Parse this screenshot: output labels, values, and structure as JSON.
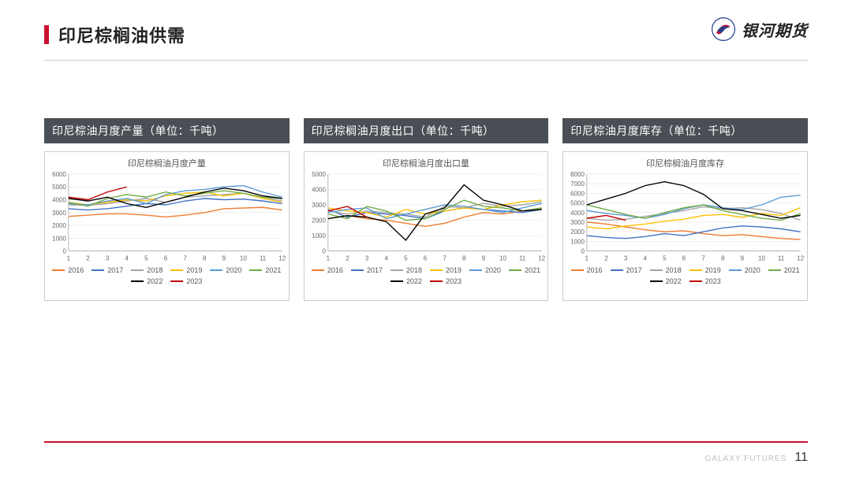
{
  "page": {
    "title": "印尼棕榈油供需",
    "brand_name": "银河期货",
    "footer_brand": "GALAXY FUTURES",
    "page_number": "11",
    "accent_color": "#c8102e",
    "header_bg": "#4a4f55"
  },
  "series_colors": {
    "2016": "#ed7d31",
    "2017": "#4472c4",
    "2018": "#a5a5a5",
    "2019": "#ffc000",
    "2020": "#5b9bd5",
    "2021": "#70ad47",
    "2022": "#000000",
    "2023": "#c00000"
  },
  "charts": [
    {
      "header": "印尼棕油月度产量（单位：千吨）",
      "title": "印尼棕榈油月度产量",
      "type": "line",
      "x_categories": [
        "1",
        "2",
        "3",
        "4",
        "5",
        "6",
        "7",
        "8",
        "9",
        "10",
        "11",
        "12"
      ],
      "ylim": [
        0,
        6000
      ],
      "ytick_step": 1000,
      "series": [
        {
          "name": "2016",
          "values": [
            2700,
            2800,
            2900,
            2900,
            2800,
            2650,
            2800,
            3000,
            3300,
            3350,
            3400,
            3200
          ]
        },
        {
          "name": "2017",
          "values": [
            3300,
            3200,
            3300,
            3500,
            3700,
            3600,
            3900,
            4100,
            4000,
            4050,
            3900,
            3700
          ]
        },
        {
          "name": "2018",
          "values": [
            3600,
            3550,
            3700,
            3900,
            4100,
            3800,
            4200,
            4300,
            4400,
            4500,
            4200,
            3900
          ]
        },
        {
          "name": "2019",
          "values": [
            3800,
            3600,
            3800,
            4000,
            3900,
            4300,
            4500,
            4600,
            4300,
            4500,
            4100,
            3800
          ]
        },
        {
          "name": "2020",
          "values": [
            3700,
            3600,
            3900,
            4100,
            3700,
            4400,
            4700,
            4800,
            5000,
            5100,
            4600,
            4200
          ]
        },
        {
          "name": "2021",
          "values": [
            3800,
            3500,
            4100,
            4400,
            4200,
            4600,
            4300,
            4500,
            4700,
            4500,
            4200,
            4100
          ]
        },
        {
          "name": "2022",
          "values": [
            4100,
            3900,
            4200,
            3700,
            3400,
            3800,
            4200,
            4600,
            4900,
            4700,
            4300,
            4100
          ]
        },
        {
          "name": "2023",
          "values": [
            4200,
            4000,
            4600,
            5000
          ]
        }
      ]
    },
    {
      "header": "印尼棕榈油月度出口（单位：千吨）",
      "title": "印尼棕榈油月度出口量",
      "type": "line",
      "x_categories": [
        "1",
        "2",
        "3",
        "4",
        "5",
        "6",
        "7",
        "8",
        "9",
        "10",
        "11",
        "12"
      ],
      "ylim": [
        0,
        5000
      ],
      "ytick_step": 1000,
      "series": [
        {
          "name": "2016",
          "values": [
            2100,
            2300,
            2100,
            2000,
            1800,
            1600,
            1800,
            2200,
            2500,
            2400,
            2600,
            2800
          ]
        },
        {
          "name": "2017",
          "values": [
            2700,
            2200,
            2500,
            2400,
            2300,
            2100,
            2600,
            2800,
            2700,
            2600,
            2500,
            2700
          ]
        },
        {
          "name": "2018",
          "values": [
            2600,
            2400,
            2600,
            2500,
            2400,
            2200,
            2900,
            2800,
            3100,
            2900,
            3000,
            3200
          ]
        },
        {
          "name": "2019",
          "values": [
            2800,
            2600,
            2500,
            2200,
            2700,
            2400,
            2600,
            2800,
            2700,
            3000,
            3200,
            3300
          ]
        },
        {
          "name": "2020",
          "values": [
            2500,
            2700,
            2800,
            2100,
            2400,
            2700,
            3000,
            2900,
            2700,
            2500,
            2800,
            3100
          ]
        },
        {
          "name": "2021",
          "values": [
            2400,
            2100,
            2900,
            2600,
            2000,
            2100,
            2700,
            3300,
            2900,
            2800,
            2600,
            2800
          ]
        },
        {
          "name": "2022",
          "values": [
            2100,
            2300,
            2200,
            1900,
            700,
            2400,
            2800,
            4300,
            3300,
            3000,
            2600,
            2700
          ]
        },
        {
          "name": "2023",
          "values": [
            2600,
            2900,
            2200
          ]
        }
      ]
    },
    {
      "header": "印尼棕油月度库存（单位：千吨）",
      "title": "印尼棕榈油月度库存",
      "type": "line",
      "x_categories": [
        "1",
        "2",
        "3",
        "4",
        "5",
        "6",
        "7",
        "8",
        "9",
        "10",
        "11",
        "12"
      ],
      "ylim": [
        0,
        8000
      ],
      "ytick_step": 1000,
      "series": [
        {
          "name": "2016",
          "values": [
            3000,
            2800,
            2500,
            2200,
            2000,
            2100,
            1800,
            1600,
            1700,
            1500,
            1300,
            1200
          ]
        },
        {
          "name": "2017",
          "values": [
            1600,
            1400,
            1300,
            1500,
            1800,
            1600,
            2000,
            2400,
            2600,
            2500,
            2300,
            2000
          ]
        },
        {
          "name": "2018",
          "values": [
            3400,
            3200,
            3300,
            3600,
            3900,
            4200,
            4600,
            4400,
            4500,
            4300,
            3900,
            3200
          ]
        },
        {
          "name": "2019",
          "values": [
            2500,
            2300,
            2600,
            2800,
            3100,
            3300,
            3700,
            3800,
            3500,
            3900,
            3700,
            4500
          ]
        },
        {
          "name": "2020",
          "values": [
            4200,
            3900,
            3700,
            3400,
            3800,
            4400,
            4800,
            4500,
            4300,
            4800,
            5600,
            5800
          ]
        },
        {
          "name": "2021",
          "values": [
            4800,
            4300,
            3800,
            3400,
            4000,
            4500,
            4800,
            4200,
            3800,
            3400,
            3200,
            3900
          ]
        },
        {
          "name": "2022",
          "values": [
            4800,
            5400,
            6000,
            6800,
            7200,
            6800,
            5900,
            4400,
            4200,
            3800,
            3400,
            3700
          ]
        },
        {
          "name": "2023",
          "values": [
            3400,
            3700,
            3200
          ]
        }
      ]
    }
  ]
}
